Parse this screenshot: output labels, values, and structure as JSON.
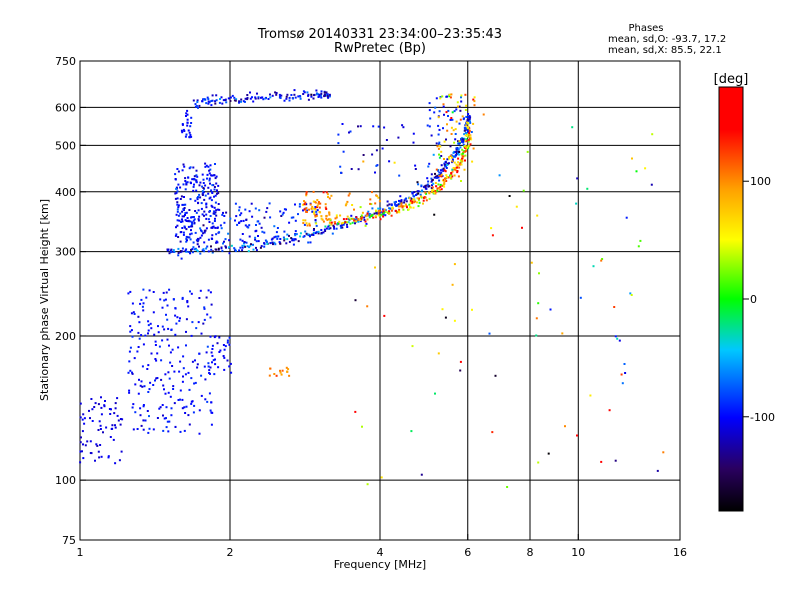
{
  "chart_data": {
    "type": "scatter",
    "title": "Tromsø 20140331 23:34:00–23:35:43",
    "subtitle": "RwPretec (Bp)",
    "stats": {
      "heading": "Phases",
      "line1": "mean, sd,O:  -93.7, 17.2",
      "line2": "mean, sd,X:  85.5, 22.1"
    },
    "xlabel": "Frequency [MHz]",
    "ylabel": "Stationary phase Virtual Height [km]",
    "x_scale": "log",
    "y_scale": "log",
    "xlim": [
      1,
      16
    ],
    "ylim": [
      75,
      750
    ],
    "x_ticks": [
      1,
      2,
      4,
      6,
      8,
      10,
      16
    ],
    "x_tick_labels": [
      "1",
      "2",
      "4",
      "6",
      "8",
      "10",
      "16"
    ],
    "x_grid": [
      2,
      4,
      6,
      8,
      10
    ],
    "y_ticks": [
      75,
      100,
      200,
      300,
      400,
      500,
      600,
      750
    ],
    "y_tick_labels": [
      "75",
      "100",
      "200",
      "300",
      "400",
      "500",
      "600",
      "750"
    ],
    "y_grid": [
      100,
      200,
      300,
      400,
      500,
      600
    ],
    "grid": true,
    "colorbar": {
      "label": "[deg]",
      "range": [
        -180,
        180
      ],
      "ticks": [
        100,
        0,
        -100
      ],
      "tick_labels": [
        "100",
        "0",
        "-100"
      ]
    },
    "series": [
      {
        "traces": [
          {
            "kind": "curve",
            "x": [
              1.5,
              1.7,
              2.0,
              2.3,
              2.6,
              3.0,
              3.4,
              3.8,
              4.2,
              4.6,
              5.0,
              5.3,
              5.6,
              5.8,
              5.95,
              6.05
            ],
            "y": [
              300,
              302,
              305,
              310,
              318,
              330,
              342,
              355,
              370,
              390,
              415,
              440,
              470,
              500,
              540,
              580
            ],
            "phase": -100,
            "sigma": 0.08
          },
          {
            "kind": "cloud",
            "x": [
              1.55,
              1.9
            ],
            "y": [
              310,
              460
            ],
            "n": 260,
            "phase": -100,
            "sigma": 0.1
          },
          {
            "kind": "cloud",
            "x": [
              1.9,
              3.0
            ],
            "y": [
              310,
              380
            ],
            "n": 110,
            "phase": -95,
            "sigma": 0.12
          },
          {
            "kind": "cloud",
            "x": [
              1.25,
              1.85
            ],
            "y": [
              125,
              250
            ],
            "n": 240,
            "phase": -100,
            "sigma": 0.06
          },
          {
            "kind": "cloud",
            "x": [
              1.0,
              1.22
            ],
            "y": [
              108,
              150
            ],
            "n": 70,
            "phase": -110,
            "sigma": 0.05
          },
          {
            "kind": "curve",
            "x": [
              1.7,
              1.9,
              2.2,
              2.6,
              3.0,
              3.2
            ],
            "y": [
              610,
              620,
              628,
              634,
              638,
              642
            ],
            "phase": -100,
            "sigma": 0.05
          },
          {
            "kind": "cloud",
            "x": [
              1.6,
              1.68
            ],
            "y": [
              520,
              600
            ],
            "n": 25,
            "phase": -100,
            "sigma": 0.05
          },
          {
            "kind": "cloud",
            "x": [
              1.8,
              2.1
            ],
            "y": [
              165,
              200
            ],
            "n": 30,
            "phase": -100,
            "sigma": 0.05
          },
          {
            "kind": "cloud",
            "x": [
              3.3,
              5.5
            ],
            "y": [
              430,
              560
            ],
            "n": 40,
            "phase": -100,
            "sigma": 0.15
          },
          {
            "kind": "cloud",
            "x": [
              5.0,
              5.9
            ],
            "y": [
              500,
              640
            ],
            "n": 40,
            "phase": -95,
            "sigma": 0.15
          }
        ]
      },
      {
        "traces": [
          {
            "kind": "curve",
            "x": [
              3.2,
              3.6,
              4.0,
              4.4,
              4.8,
              5.2,
              5.5,
              5.8,
              6.0,
              6.05
            ],
            "y": [
              345,
              350,
              358,
              368,
              385,
              405,
              430,
              460,
              500,
              540
            ],
            "phase": 90,
            "sigma": 0.15
          },
          {
            "kind": "cloud",
            "x": [
              2.8,
              3.2
            ],
            "y": [
              340,
              400
            ],
            "n": 70,
            "phase": 95,
            "sigma": 0.2
          },
          {
            "kind": "cloud",
            "x": [
              5.2,
              6.2
            ],
            "y": [
              420,
              640
            ],
            "n": 70,
            "phase": 85,
            "sigma": 0.25
          },
          {
            "kind": "cloud",
            "x": [
              3.4,
              4.0
            ],
            "y": [
              360,
              400
            ],
            "n": 20,
            "phase": 90,
            "sigma": 0.2
          },
          {
            "kind": "cloud",
            "x": [
              2.4,
              2.65
            ],
            "y": [
              165,
              172
            ],
            "n": 14,
            "phase": 95,
            "sigma": 0.1
          }
        ]
      },
      {
        "traces": [
          {
            "kind": "cloud",
            "x": [
              3.5,
              15.0
            ],
            "y": [
              95,
              620
            ],
            "n": 90,
            "phase": 0,
            "sigma": 0.9
          }
        ]
      }
    ]
  }
}
